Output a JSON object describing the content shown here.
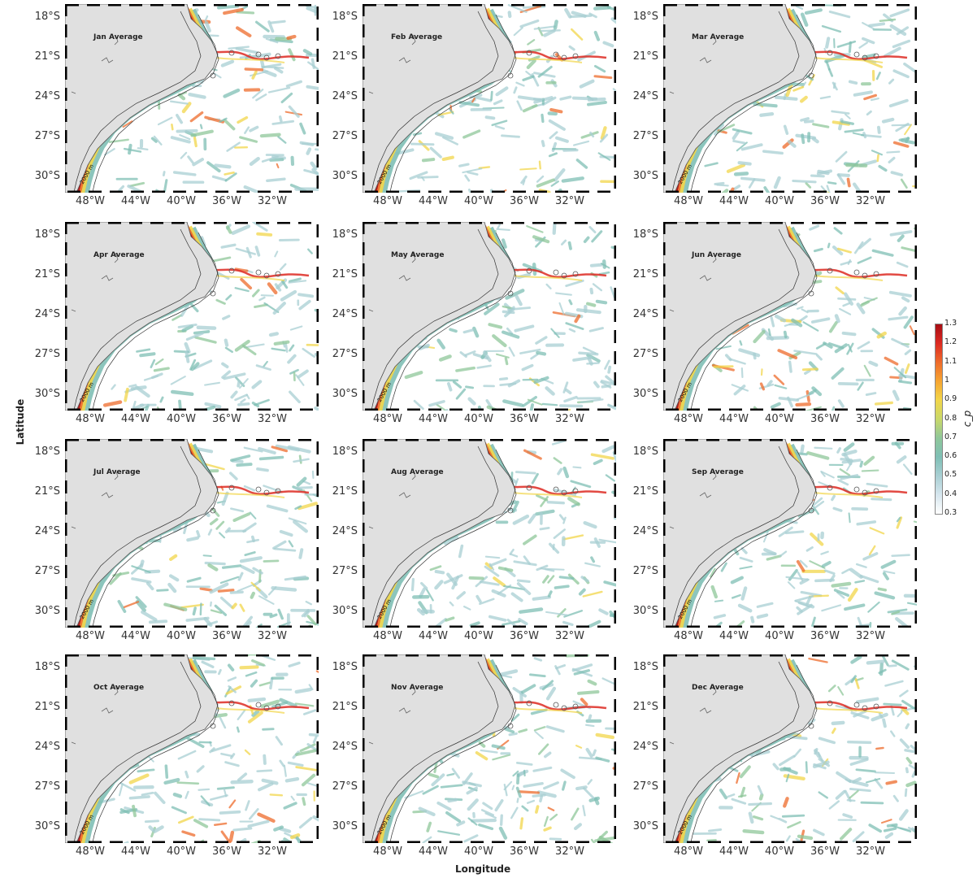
{
  "figure": {
    "ylabel": "Latitude",
    "xlabel": "Longitude",
    "lat_ticks": [
      "18°S",
      "21°S",
      "24°S",
      "27°S",
      "30°S"
    ],
    "lon_ticks": [
      "48°W",
      "44°W",
      "40°W",
      "36°W",
      "32°W"
    ],
    "isobath_label": "200 m",
    "isobath_label_deep": "2000 m",
    "panels": [
      {
        "title": "Jan Average"
      },
      {
        "title": "Feb Average"
      },
      {
        "title": "Mar Average"
      },
      {
        "title": "Apr Average"
      },
      {
        "title": "May Average"
      },
      {
        "title": "Jun Average"
      },
      {
        "title": "Jul Average"
      },
      {
        "title": "Aug Average"
      },
      {
        "title": "Sep Average"
      },
      {
        "title": "Oct Average"
      },
      {
        "title": "Nov Average"
      },
      {
        "title": "Dec Average"
      }
    ]
  },
  "colorbar": {
    "label": "c_p",
    "ticks": [
      "1.3",
      "1.2",
      "1.1",
      "1",
      "0.9",
      "0.8",
      "0.7",
      "0.6",
      "0.5",
      "0.4",
      "0.3"
    ],
    "min": 0.3,
    "max": 1.3,
    "colors": [
      "#ffffff",
      "#d6e6ee",
      "#a9cfd3",
      "#7fbfb5",
      "#8fc79a",
      "#c9d86a",
      "#f2d64a",
      "#f6a531",
      "#ee6b2b",
      "#dd2a22",
      "#a80d14"
    ]
  },
  "colors": {
    "land": "#e0e0e0",
    "coast": "#555555",
    "ocean": "#ffffff"
  }
}
